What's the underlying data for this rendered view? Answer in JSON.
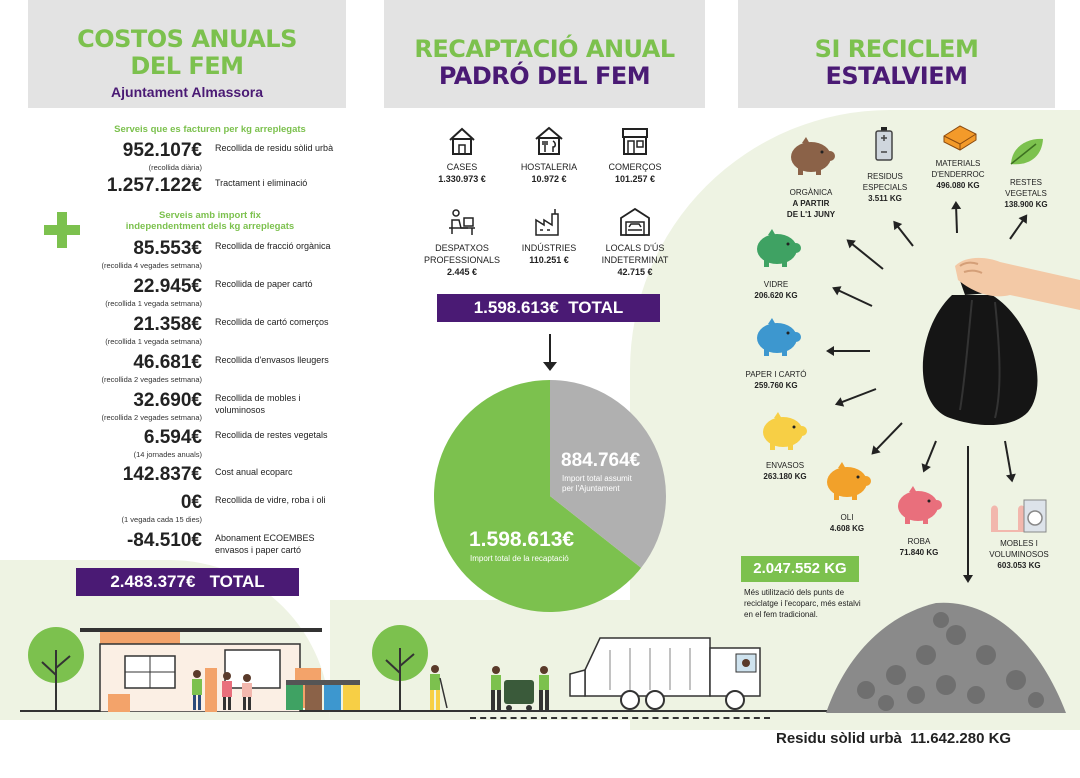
{
  "colors": {
    "green": "#7cc14e",
    "purple": "#4a1a74",
    "grey": "#e3e3e3"
  },
  "col1": {
    "title_line1": "COSTOS ANUALS",
    "title_line2": "DEL FEM",
    "subtitle": "Ajuntament Almassora",
    "section1_label": "Serveis que es facturen per kg arreplegats",
    "section2_label_line1": "Serveis amb import fix",
    "section2_label_line2": "independentment dels kg arreplegats",
    "rows": [
      {
        "amount": "952.107€",
        "note": "(recollida diària)",
        "desc": "Recollida de residu sòlid urbà"
      },
      {
        "amount": "1.257.122€",
        "note": "",
        "desc": "Tractament i eliminació"
      },
      {
        "amount": "85.553€",
        "note": "(recollida 4 vegades setmana)",
        "desc": "Recollida de fracció orgànica"
      },
      {
        "amount": "22.945€",
        "note": "(recollida 1 vegada setmana)",
        "desc": "Recollida de paper cartó"
      },
      {
        "amount": "21.358€",
        "note": "(recollida 1 vegada setmana)",
        "desc": "Recollida de cartó comerços"
      },
      {
        "amount": "46.681€",
        "note": "(recollida 2 vegades setmana)",
        "desc": "Recollida d'envasos lleugers"
      },
      {
        "amount": "32.690€",
        "note": "(recollida 2 vegades setmana)",
        "desc": "Recollida de mobles i voluminosos"
      },
      {
        "amount": "6.594€",
        "note": "(14 jornades anuals)",
        "desc": "Recollida de restes vegetals"
      },
      {
        "amount": "142.837€",
        "note": "",
        "desc": "Cost anual ecoparc"
      },
      {
        "amount": "0€",
        "note": "(1 vegada cada 15 dies)",
        "desc": "Recollida de vidre, roba i oli"
      },
      {
        "amount": "-84.510€",
        "note": "",
        "desc": "Abonament ECOEMBES envasos i paper  cartó"
      }
    ],
    "total": "2.483.377€   TOTAL"
  },
  "col2": {
    "title_line1": "RECAPTACIÓ ANUAL",
    "title_line2": "PADRÓ DEL FEM",
    "categories": [
      {
        "name": "CASES",
        "value": "1.330.973 €",
        "icon": "house-icon"
      },
      {
        "name": "HOSTALERIA",
        "value": "10.972 €",
        "icon": "restaurant-icon"
      },
      {
        "name": "COMERÇOS",
        "value": "101.257 €",
        "icon": "shop-icon"
      },
      {
        "name": "DESPATXOS PROFESSIONALS",
        "value": "2.445 €",
        "icon": "office-desk-icon"
      },
      {
        "name": "INDÚSTRIES",
        "value": "110.251 €",
        "icon": "factory-icon"
      },
      {
        "name": "LOCALS D'ÚS INDETERMINAT",
        "value": "42.715 €",
        "icon": "garage-icon"
      }
    ],
    "total": "1.598.613€  TOTAL",
    "pie": {
      "big_value": "1.598.613€",
      "big_label": "Import total de la recaptació",
      "small_value": "884.764€",
      "small_label_line1": "Import total assumit",
      "small_label_line2": "per l'Ajuntament",
      "slices": [
        1598613,
        884764
      ]
    }
  },
  "col3": {
    "title_line1": "SI RECICLEM",
    "title_line2": "ESTALVIEM",
    "items": [
      {
        "name": "ORGÀNICA",
        "value": "A PARTIR DE L'1 JUNY",
        "icon": "piggy-bank-icon"
      },
      {
        "name": "RESIDUS ESPECIALS",
        "value": "3.511 KG",
        "icon": "battery-icon"
      },
      {
        "name": "MATERIALS D'ENDERROC",
        "value": "496.080 KG",
        "icon": "brick-icon"
      },
      {
        "name": "RESTES VEGETALS",
        "value": "138.900 KG",
        "icon": "leaf-icon"
      },
      {
        "name": "VIDRE",
        "value": "206.620 KG",
        "icon": "piggy-bank-icon"
      },
      {
        "name": "PAPER I CARTÓ",
        "value": "259.760 KG",
        "icon": "piggy-bank-icon"
      },
      {
        "name": "ENVASOS",
        "value": "263.180 KG",
        "icon": "piggy-bank-icon"
      },
      {
        "name": "OLI",
        "value": "4.608 KG",
        "icon": "piggy-bank-icon"
      },
      {
        "name": "ROBA",
        "value": "71.840 KG",
        "icon": "piggy-bank-icon"
      },
      {
        "name": "MOBLES I VOLUMINOSOS",
        "value": "603.053 KG",
        "icon": "washing-machine-icon"
      }
    ],
    "saved_total": "2.047.552 KG",
    "saved_text": "Més utilització dels punts de reciclatge i l'ecoparc, més estalvi en el fem tradicional.",
    "rsu": "Residu sòlid urbà  11.642.280 KG"
  }
}
